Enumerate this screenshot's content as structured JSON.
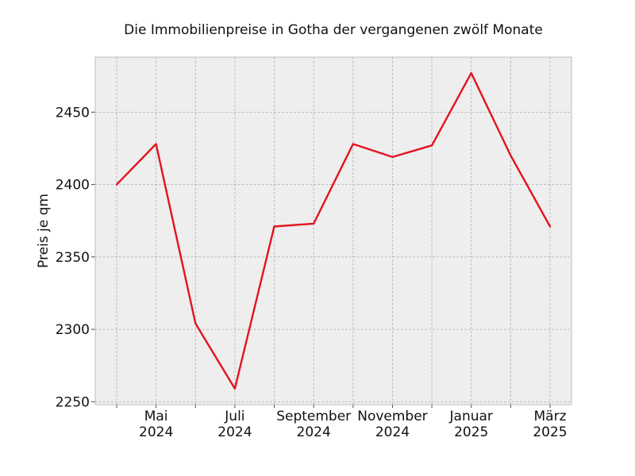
{
  "chart_data": {
    "type": "line",
    "title": "Die Immobilienpreise in Gotha der vergangenen zwölf Monate",
    "xlabel": "",
    "ylabel": "Preis je qm",
    "x": [
      "2024-04",
      "2024-05",
      "2024-06",
      "2024-07",
      "2024-08",
      "2024-09",
      "2024-10",
      "2024-11",
      "2024-12",
      "2025-01",
      "2025-02",
      "2025-03"
    ],
    "series": [
      {
        "values": [
          2400,
          2428,
          2304,
          2259,
          2371,
          2373,
          2428,
          2419,
          2427,
          2477,
          2420,
          2371
        ]
      }
    ],
    "ylim": [
      2248,
      2488
    ],
    "y_ticks": [
      2250,
      2300,
      2350,
      2400,
      2450
    ],
    "x_ticks": [
      {
        "x": "2024-05",
        "month": "Mai",
        "year": "2024"
      },
      {
        "x": "2024-07",
        "month": "Juli",
        "year": "2024"
      },
      {
        "x": "2024-09",
        "month": "September",
        "year": "2024"
      },
      {
        "x": "2024-11",
        "month": "November",
        "year": "2024"
      },
      {
        "x": "2025-01",
        "month": "Januar",
        "year": "2025"
      },
      {
        "x": "2025-03",
        "month": "März",
        "year": "2025"
      }
    ],
    "grid": true,
    "colors": {
      "line": "#e3121e",
      "plot_background": "#eeeeee",
      "frame": "#bcbcbc"
    }
  }
}
